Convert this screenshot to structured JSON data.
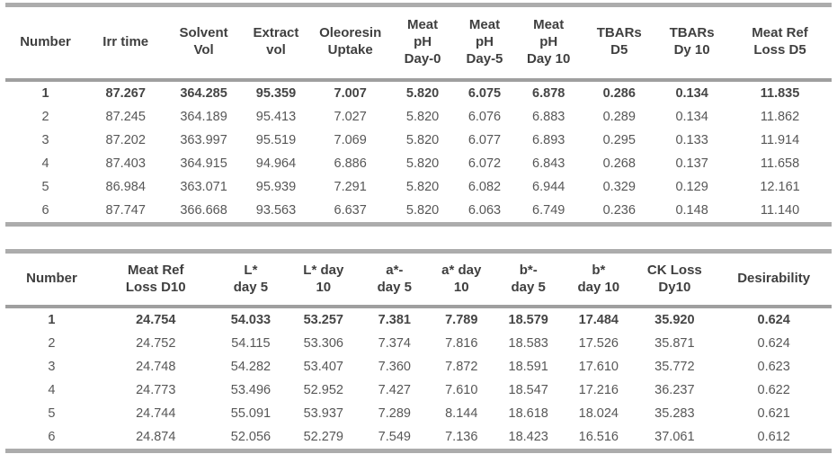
{
  "colors": {
    "rule_gray": "#acacac",
    "header_separator_gray": "#9f9f9f",
    "header_text": "#3f3f3f",
    "body_text": "#575757",
    "background": "#ffffff"
  },
  "tables": [
    {
      "headers": [
        "Number",
        "Irr time",
        "Solvent\nVol",
        "Extract\nvol",
        "Oleoresin\nUptake",
        "Meat\npH\nDay-0",
        "Meat\npH\nDay-5",
        "Meat\npH\nDay 10",
        "TBARs\nD5",
        "TBARs\nDy 10",
        "Meat Ref\nLoss D5"
      ],
      "col_widths": [
        9.7,
        9.7,
        9.2,
        8.3,
        9.7,
        7.8,
        7.2,
        8.3,
        8.8,
        8.8,
        12.5
      ],
      "rows": [
        {
          "bold": true,
          "cells": [
            "1",
            "87.267",
            "364.285",
            "95.359",
            "7.007",
            "5.820",
            "6.075",
            "6.878",
            "0.286",
            "0.134",
            "11.835"
          ]
        },
        {
          "bold": false,
          "cells": [
            "2",
            "87.245",
            "364.189",
            "95.413",
            "7.027",
            "5.820",
            "6.076",
            "6.883",
            "0.289",
            "0.134",
            "11.862"
          ]
        },
        {
          "bold": false,
          "cells": [
            "3",
            "87.202",
            "363.997",
            "95.519",
            "7.069",
            "5.820",
            "6.077",
            "6.893",
            "0.295",
            "0.133",
            "11.914"
          ]
        },
        {
          "bold": false,
          "cells": [
            "4",
            "87.403",
            "364.915",
            "94.964",
            "6.886",
            "5.820",
            "6.072",
            "6.843",
            "0.268",
            "0.137",
            "11.658"
          ]
        },
        {
          "bold": false,
          "cells": [
            "5",
            "86.984",
            "363.071",
            "95.939",
            "7.291",
            "5.820",
            "6.082",
            "6.944",
            "0.329",
            "0.129",
            "12.161"
          ]
        },
        {
          "bold": false,
          "cells": [
            "6",
            "87.747",
            "366.668",
            "93.563",
            "6.637",
            "5.820",
            "6.063",
            "6.749",
            "0.236",
            "0.148",
            "11.140"
          ]
        }
      ]
    },
    {
      "headers": [
        "Number",
        "Meat Ref\nLoss D10",
        "L*\nday 5",
        "L* day\n10",
        "a*-\nday 5",
        "a* day\n10",
        "b*-\nday 5",
        "b*\nday 10",
        "CK Loss\nDy10",
        "Desirability"
      ],
      "col_widths": [
        11.2,
        14.0,
        9.0,
        8.6,
        8.6,
        7.6,
        8.6,
        8.4,
        10.0,
        14.0
      ],
      "rows": [
        {
          "bold": true,
          "cells": [
            "1",
            "24.754",
            "54.033",
            "53.257",
            "7.381",
            "7.789",
            "18.579",
            "17.484",
            "35.920",
            "0.624"
          ]
        },
        {
          "bold": false,
          "cells": [
            "2",
            "24.752",
            "54.115",
            "53.306",
            "7.374",
            "7.816",
            "18.583",
            "17.526",
            "35.871",
            "0.624"
          ]
        },
        {
          "bold": false,
          "cells": [
            "3",
            "24.748",
            "54.282",
            "53.407",
            "7.360",
            "7.872",
            "18.591",
            "17.610",
            "35.772",
            "0.623"
          ]
        },
        {
          "bold": false,
          "cells": [
            "4",
            "24.773",
            "53.496",
            "52.952",
            "7.427",
            "7.610",
            "18.547",
            "17.216",
            "36.237",
            "0.622"
          ]
        },
        {
          "bold": false,
          "cells": [
            "5",
            "24.744",
            "55.091",
            "53.937",
            "7.289",
            "8.144",
            "18.618",
            "18.024",
            "35.283",
            "0.621"
          ]
        },
        {
          "bold": false,
          "cells": [
            "6",
            "24.874",
            "52.056",
            "52.279",
            "7.549",
            "7.136",
            "18.423",
            "16.516",
            "37.061",
            "0.612"
          ]
        }
      ]
    }
  ]
}
